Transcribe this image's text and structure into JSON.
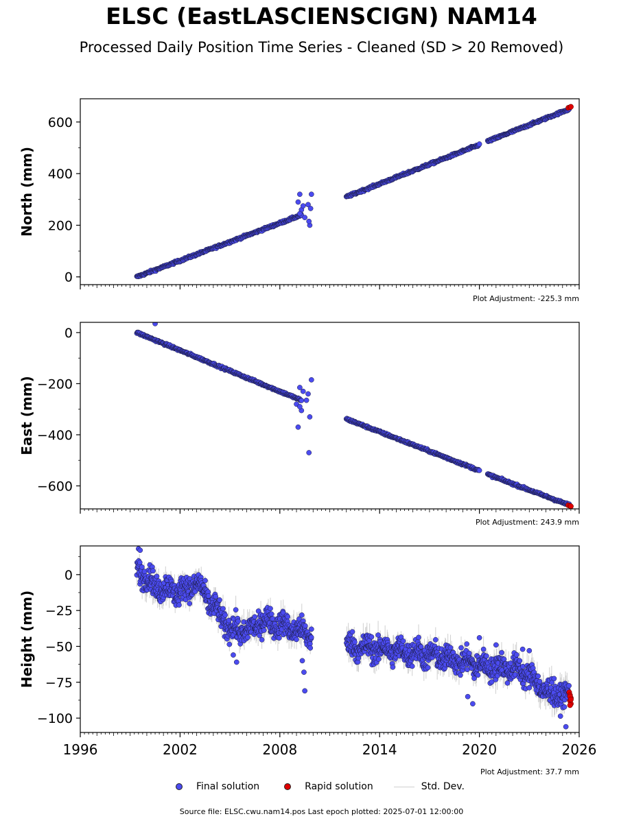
{
  "title": "ELSC (EastLASCIENSCIGN) NAM14",
  "subtitle": "Processed Daily Position Time Series - Cleaned (SD > 20 Removed)",
  "footer": "Source file: ELSC.cwu.nam14.pos  Last epoch plotted: 2025-07-01 12:00:00",
  "legend": {
    "final": "Final solution",
    "rapid": "Rapid solution",
    "std": "Std. Dev."
  },
  "colors": {
    "final": "#4b4bf0",
    "rapid": "#e00000",
    "std": "#bbbbbb",
    "edge": "#1a1a3a"
  },
  "chart_data": [
    {
      "type": "scatter",
      "ylabel": "North (mm)",
      "adjustment": "Plot Adjustment: -225.3 mm",
      "xlim": [
        1996,
        2026
      ],
      "ylim": [
        -30,
        690
      ],
      "yticks": [
        0,
        200,
        400,
        600
      ],
      "ytick_labels": [
        "0",
        "200",
        "400",
        "600"
      ],
      "segments": [
        {
          "x": [
            1999.4,
            2009.3
          ],
          "y": [
            0,
            240
          ],
          "noise": 3
        },
        {
          "x": [
            2012.0,
            2020.0
          ],
          "y": [
            310,
            512
          ],
          "noise": 3
        },
        {
          "x": [
            2020.5,
            2025.4
          ],
          "y": [
            525,
            650
          ],
          "noise": 3
        }
      ],
      "outliers": {
        "x": [
          2009.1,
          2009.2,
          2009.3,
          2009.4,
          2009.5,
          2009.7,
          2009.8,
          2009.9,
          2009.75,
          2009.85,
          2009.2
        ],
        "y": [
          290,
          320,
          260,
          275,
          230,
          280,
          200,
          320,
          215,
          265,
          245
        ]
      },
      "rapid": {
        "x": [
          2025.35,
          2025.45,
          2025.5
        ],
        "y": [
          655,
          657,
          659
        ]
      }
    },
    {
      "type": "scatter",
      "ylabel": "East (mm)",
      "adjustment": "Plot Adjustment: 243.9 mm",
      "xlim": [
        1996,
        2026
      ],
      "ylim": [
        -690,
        40
      ],
      "yticks": [
        -600,
        -400,
        -200,
        0
      ],
      "ytick_labels": [
        "−600",
        "−400",
        "−200",
        "0"
      ],
      "segments": [
        {
          "x": [
            1999.4,
            2009.3
          ],
          "y": [
            0,
            -265
          ],
          "noise": 3
        },
        {
          "x": [
            2012.0,
            2020.0
          ],
          "y": [
            -338,
            -540
          ],
          "noise": 3
        },
        {
          "x": [
            2020.5,
            2025.4
          ],
          "y": [
            -555,
            -675
          ],
          "noise": 3
        }
      ],
      "outliers": {
        "x": [
          2000.5,
          2009.0,
          2009.1,
          2009.2,
          2009.3,
          2009.4,
          2009.6,
          2009.7,
          2009.8,
          2009.9,
          2009.75,
          2009.2
        ],
        "y": [
          35,
          -280,
          -370,
          -215,
          -305,
          -230,
          -265,
          -240,
          -330,
          -185,
          -470,
          -290
        ]
      },
      "rapid": {
        "x": [
          2025.35,
          2025.45,
          2025.5
        ],
        "y": [
          -676,
          -678,
          -680
        ]
      }
    },
    {
      "type": "scatter",
      "ylabel": "Height (mm)",
      "adjustment": "Plot Adjustment: 37.7 mm",
      "xlim": [
        1996,
        2026
      ],
      "ylim": [
        -110,
        20
      ],
      "yticks": [
        -100,
        -75,
        -50,
        -25,
        0
      ],
      "ytick_labels": [
        "−100",
        "−75",
        "−50",
        "−25",
        "0"
      ],
      "xticks": [
        1996,
        2002,
        2008,
        2014,
        2020,
        2026
      ],
      "trend": {
        "x": [
          1999.4,
          2000.5,
          2002.0,
          2003.0,
          2004.0,
          2005.0,
          2006.0,
          2007.0,
          2008.0,
          2009.3,
          2012.0,
          2014.0,
          2016.0,
          2018.0,
          2020.0,
          2020.5,
          2022.0,
          2023.0,
          2024.0,
          2025.4
        ],
        "y": [
          5,
          -8,
          -12,
          -6,
          -22,
          -38,
          -40,
          -32,
          -35,
          -40,
          -50,
          -52,
          -54,
          -58,
          -63,
          -64,
          -65,
          -70,
          -82,
          -85
        ]
      },
      "gap": [
        2009.9,
        2012.0
      ],
      "noise": 6,
      "outliers": {
        "x": [
          1999.5,
          1999.6,
          2009.9,
          2009.35,
          2009.45,
          2009.5,
          2005.2,
          2005.4,
          2019.3,
          2019.6,
          2020.0,
          2021.0,
          2022.6,
          2023.0,
          2025.2
        ],
        "y": [
          18,
          17,
          -38,
          -60,
          -68,
          -81,
          -56,
          -61,
          -85,
          -90,
          -44,
          -49,
          -52,
          -53,
          -106
        ]
      },
      "rapid": {
        "x": [
          2025.4,
          2025.45,
          2025.5,
          2025.45,
          2025.5,
          2025.45,
          2025.5,
          2025.45
        ],
        "y": [
          -82,
          -84,
          -86,
          -88,
          -90,
          -85,
          -87,
          -91
        ]
      }
    }
  ]
}
